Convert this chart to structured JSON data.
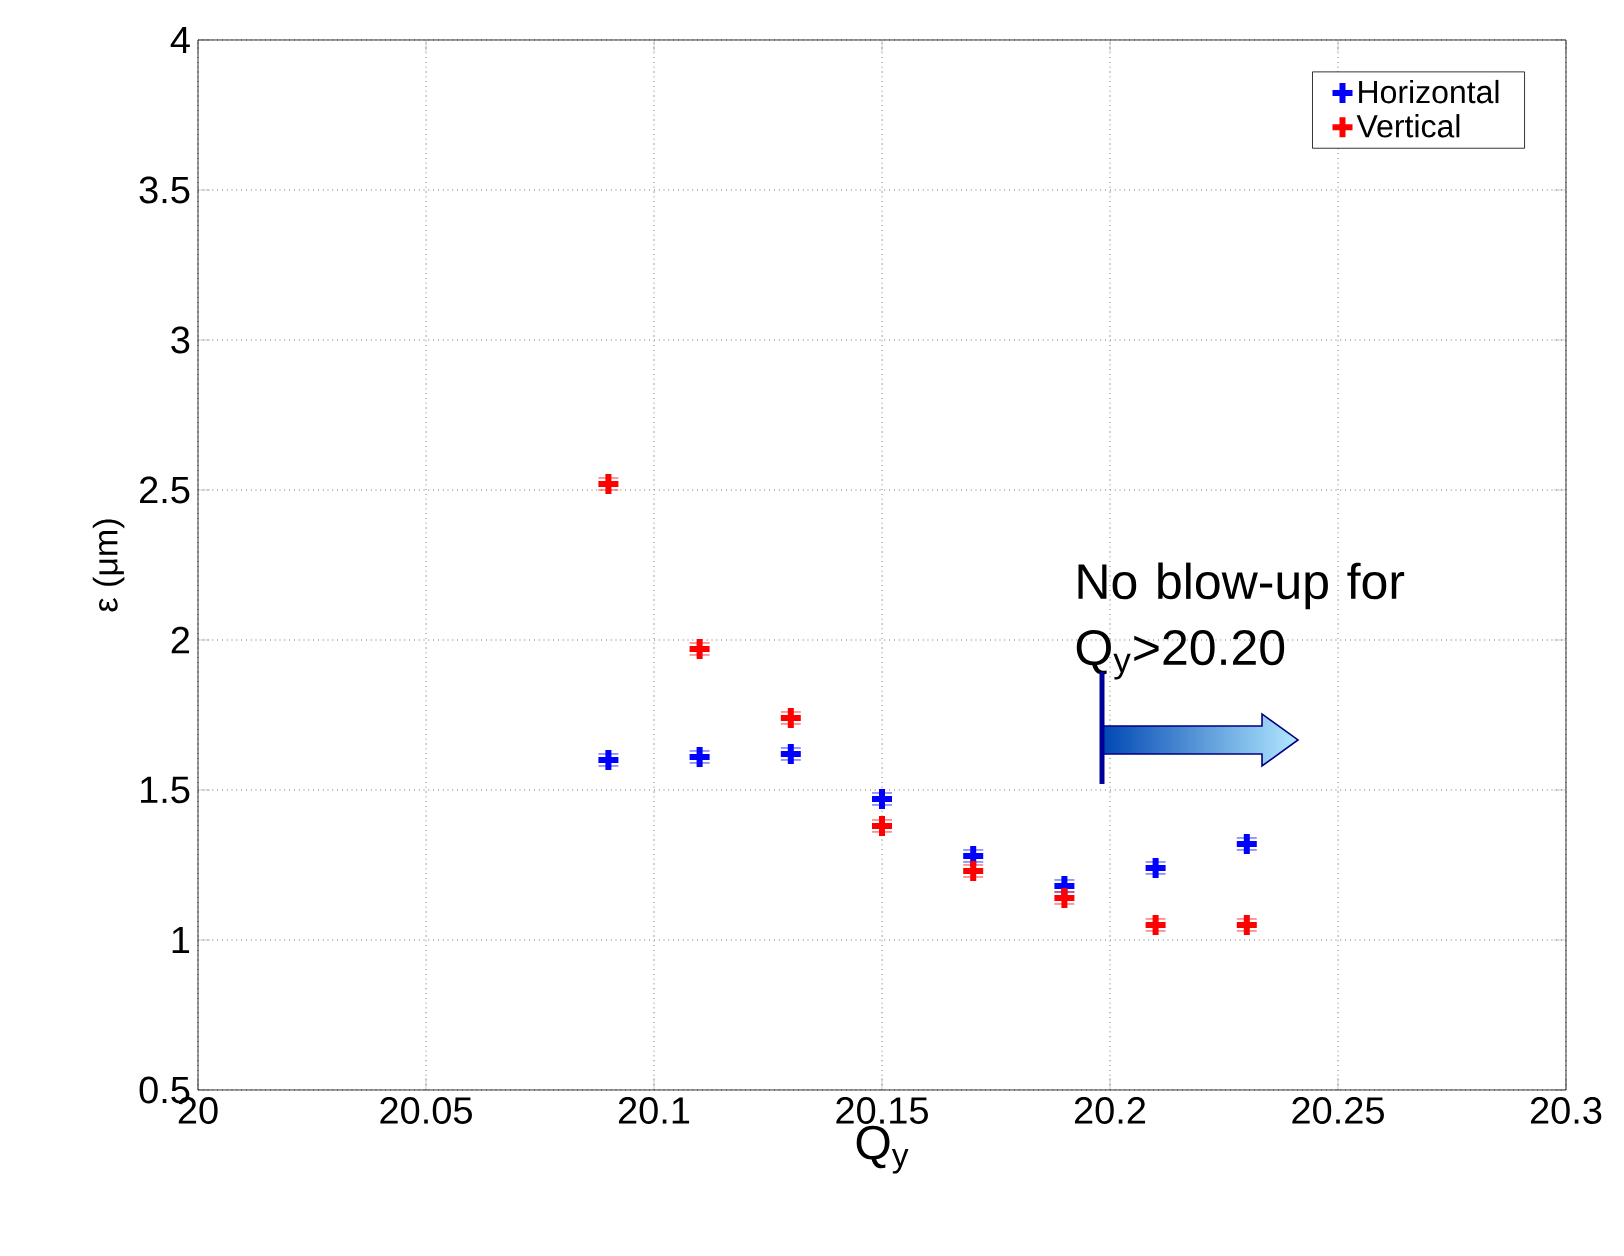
{
  "chart_data": {
    "type": "scatter",
    "xlabel": "Q$_{y}$",
    "ylabel": "ε (μm)",
    "x": [
      20.09,
      20.11,
      20.13,
      20.15,
      20.17,
      20.19,
      20.21,
      20.23
    ],
    "series": [
      {
        "name": "Horizontal",
        "color": "#0000ff",
        "values": [
          1.6,
          1.61,
          1.62,
          1.47,
          1.28,
          1.18,
          1.24,
          1.32
        ],
        "errors": [
          0.02,
          0.02,
          0.02,
          0.02,
          0.02,
          0.02,
          0.02,
          0.02
        ]
      },
      {
        "name": "Vertical",
        "color": "#ff0000",
        "values": [
          2.52,
          1.97,
          1.74,
          1.38,
          1.23,
          1.14,
          1.05,
          1.05
        ],
        "errors": [
          0.02,
          0.02,
          0.02,
          0.02,
          0.02,
          0.02,
          0.02,
          0.02
        ]
      }
    ],
    "xlim": [
      20,
      20.3
    ],
    "xticks": [
      20,
      20.05,
      20.1,
      20.15,
      20.2,
      20.25,
      20.3
    ],
    "ylim": [
      0.5,
      4
    ],
    "yticks": [
      0.5,
      1,
      1.5,
      2,
      2.5,
      3,
      3.5,
      4
    ],
    "grid": true,
    "legend": "top right",
    "marker": "cross",
    "annotations": [
      "No blow-up for Q$_{y}$>20.20"
    ]
  }
}
